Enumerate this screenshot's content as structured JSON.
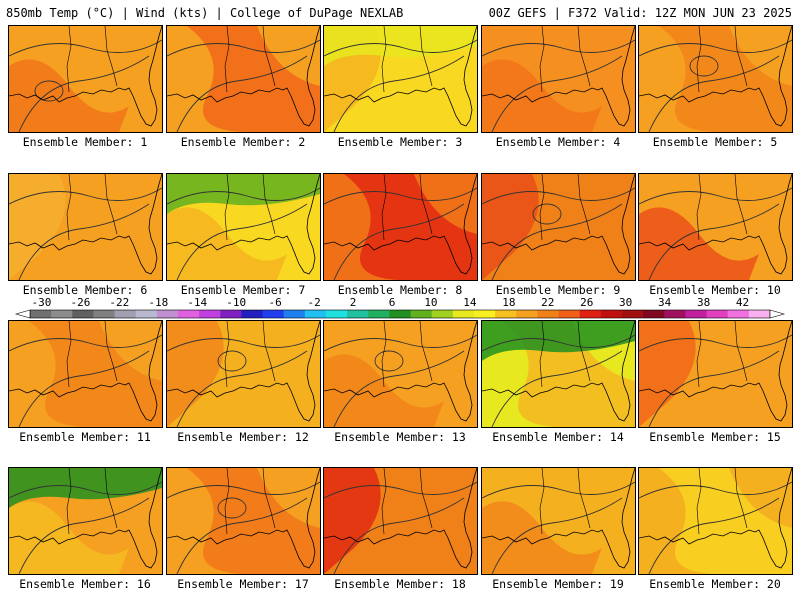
{
  "header": {
    "left": "850mb Temp (°C) | Wind (kts) | College of DuPage NEXLAB",
    "right": "00Z GEFS | F372 Valid: 12Z MON JUN 23 2025"
  },
  "members": [
    {
      "label": "Ensemble Member: 1",
      "bg": "#f5a020",
      "warm_blob": "#f07018",
      "cool_blob": null
    },
    {
      "label": "Ensemble Member: 2",
      "bg": "#f5a020",
      "warm_blob": "#f06018",
      "cool_blob": null
    },
    {
      "label": "Ensemble Member: 3",
      "bg": "#f8d820",
      "warm_blob": "#f5b020",
      "cool_blob": "#e8e820"
    },
    {
      "label": "Ensemble Member: 4",
      "bg": "#f59020",
      "warm_blob": "#f07018",
      "cool_blob": null
    },
    {
      "label": "Ensemble Member: 5",
      "bg": "#f5a020",
      "warm_blob": "#f08018",
      "cool_blob": null
    },
    {
      "label": "Ensemble Member: 6",
      "bg": "#f5a020",
      "warm_blob": "#f5b030",
      "cool_blob": null
    },
    {
      "label": "Ensemble Member: 7",
      "bg": "#f8d820",
      "warm_blob": "#f5b020",
      "cool_blob": "#60b020"
    },
    {
      "label": "Ensemble Member: 8",
      "bg": "#f07018",
      "warm_blob": "#e02010",
      "cool_blob": null
    },
    {
      "label": "Ensemble Member: 9",
      "bg": "#f08018",
      "warm_blob": "#e84818",
      "cool_blob": null
    },
    {
      "label": "Ensemble Member: 10",
      "bg": "#f5a020",
      "warm_blob": "#e84818",
      "cool_blob": null
    },
    {
      "label": "Ensemble Member: 11",
      "bg": "#f5a020",
      "warm_blob": "#f08018",
      "cool_blob": null
    },
    {
      "label": "Ensemble Member: 12",
      "bg": "#f5b020",
      "warm_blob": "#f08018",
      "cool_blob": null
    },
    {
      "label": "Ensemble Member: 13",
      "bg": "#f5a020",
      "warm_blob": "#f08018",
      "cool_blob": null
    },
    {
      "label": "Ensemble Member: 14",
      "bg": "#e8e820",
      "warm_blob": "#f5b020",
      "cool_blob": "#209020"
    },
    {
      "label": "Ensemble Member: 15",
      "bg": "#f5a020",
      "warm_blob": "#f06018",
      "cool_blob": null
    },
    {
      "label": "Ensemble Member: 16",
      "bg": "#f5a020",
      "warm_blob": "#f5c020",
      "cool_blob": "#209020"
    },
    {
      "label": "Ensemble Member: 17",
      "bg": "#f5a020",
      "warm_blob": "#f07018",
      "cool_blob": null
    },
    {
      "label": "Ensemble Member: 18",
      "bg": "#f08018",
      "warm_blob": "#e02010",
      "cool_blob": null
    },
    {
      "label": "Ensemble Member: 19",
      "bg": "#f5b020",
      "warm_blob": "#f08018",
      "cool_blob": null
    },
    {
      "label": "Ensemble Member: 20",
      "bg": "#f5b020",
      "warm_blob": "#f8d820",
      "cool_blob": null
    }
  ],
  "colorbar": {
    "ticks": [
      "-30",
      "-26",
      "-22",
      "-18",
      "-14",
      "-10",
      "-6",
      "-2",
      "2",
      "6",
      "10",
      "14",
      "18",
      "22",
      "26",
      "30",
      "34",
      "38",
      "42"
    ],
    "colors": [
      "#707070",
      "#8c8c8c",
      "#606060",
      "#808080",
      "#a0a0b0",
      "#b8b8d0",
      "#c090d0",
      "#e060e0",
      "#c040e0",
      "#8020c0",
      "#2020c0",
      "#2040f0",
      "#2080f0",
      "#20c0f0",
      "#20e0e0",
      "#20c0a0",
      "#20b060",
      "#209020",
      "#60b020",
      "#a0d020",
      "#e8e820",
      "#f8f020",
      "#f5c020",
      "#f5a020",
      "#f08018",
      "#f06018",
      "#e02010",
      "#c01010",
      "#a01010",
      "#800820",
      "#a01060",
      "#c020a0",
      "#e040c0",
      "#f070e0",
      "#f8b0f0"
    ]
  }
}
